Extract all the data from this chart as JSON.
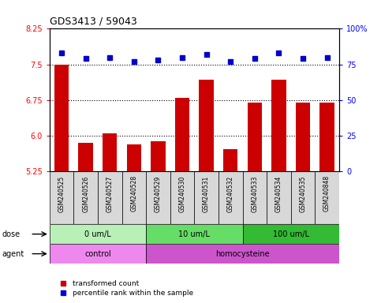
{
  "title": "GDS3413 / 59043",
  "samples": [
    "GSM240525",
    "GSM240526",
    "GSM240527",
    "GSM240528",
    "GSM240529",
    "GSM240530",
    "GSM240531",
    "GSM240532",
    "GSM240533",
    "GSM240534",
    "GSM240535",
    "GSM240848"
  ],
  "red_values": [
    7.5,
    5.85,
    6.05,
    5.82,
    5.88,
    6.8,
    7.18,
    5.72,
    6.7,
    7.18,
    6.7,
    6.7
  ],
  "blue_values": [
    83,
    79,
    80,
    77,
    78,
    80,
    82,
    77,
    79,
    83,
    79,
    80
  ],
  "ylim_left": [
    5.25,
    8.25
  ],
  "ylim_right": [
    0,
    100
  ],
  "yticks_left": [
    5.25,
    6.0,
    6.75,
    7.5,
    8.25
  ],
  "yticks_right": [
    0,
    25,
    50,
    75,
    100
  ],
  "ytick_labels_right": [
    "0",
    "25",
    "50",
    "75",
    "100%"
  ],
  "hlines": [
    7.5,
    6.75,
    6.0
  ],
  "dose_groups": [
    {
      "label": "0 um/L",
      "start": 0,
      "end": 4,
      "color": "#b8f0b8"
    },
    {
      "label": "10 um/L",
      "start": 4,
      "end": 8,
      "color": "#66dd66"
    },
    {
      "label": "100 um/L",
      "start": 8,
      "end": 12,
      "color": "#33bb33"
    }
  ],
  "agent_groups": [
    {
      "label": "control",
      "start": 0,
      "end": 4,
      "color": "#ee88ee"
    },
    {
      "label": "homocysteine",
      "start": 4,
      "end": 12,
      "color": "#cc55cc"
    }
  ],
  "bar_color": "#cc0000",
  "dot_color": "#0000cc",
  "bar_width": 0.6,
  "background_color": "#ffffff",
  "plot_bg_color": "#ffffff",
  "dose_label": "dose",
  "agent_label": "agent",
  "legend_red": "transformed count",
  "legend_blue": "percentile rank within the sample"
}
